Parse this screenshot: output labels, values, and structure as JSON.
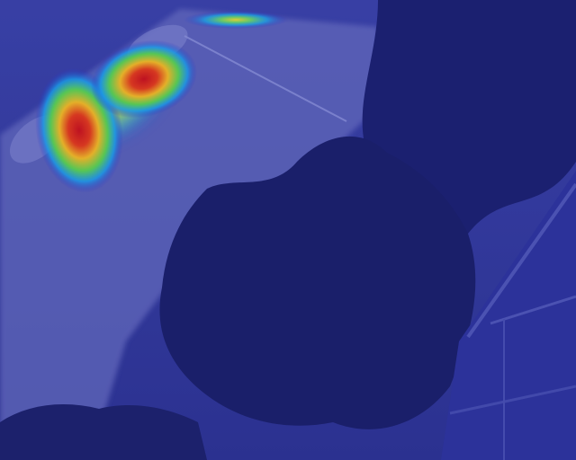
{
  "image": {
    "kind": "heatmap-overlay",
    "colors": {
      "base_overlay": "#2a2e8e",
      "road": "#6c73c0",
      "foliage": "#1b1f6a",
      "building": "#3a40a0",
      "hot": "#e6201a",
      "warm": "#ffd21f",
      "mid": "#3cd06a",
      "cool": "#1aa8f0"
    }
  }
}
